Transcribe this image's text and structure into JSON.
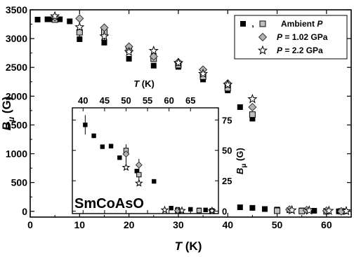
{
  "chart_data": [
    {
      "id": "main",
      "type": "scatter",
      "xlabel": "T",
      "xlabel_unit": "(K)",
      "ylabel": "B",
      "ylabel_sub": "μ",
      "ylabel_unit": "(G)",
      "xlim": [
        0,
        65
      ],
      "ylim": [
        -100,
        3500
      ],
      "xticks": [
        "0",
        "10",
        "20",
        "30",
        "40",
        "50",
        "60"
      ],
      "xtick_values": [
        0,
        10,
        20,
        30,
        40,
        50,
        60
      ],
      "yticks": [
        "0",
        "500",
        "1000",
        "1500",
        "2000",
        "2500",
        "3000",
        "3500"
      ],
      "ytick_values": [
        0,
        500,
        1000,
        1500,
        2000,
        2500,
        3000,
        3500
      ],
      "legend": {
        "placement": "top-right",
        "entries": [
          {
            "marker": "square-black+square-gray",
            "separator": ",",
            "label_var": "Ambient",
            "label_rest": "P"
          },
          {
            "marker": "diamond",
            "label_var": "P",
            "label_rest": "= 1.02 GPa"
          },
          {
            "marker": "star",
            "label_var": "P",
            "label_rest": "= 2.2 GPa"
          }
        ]
      },
      "series": [
        {
          "marker": "square-black",
          "color": "#000000",
          "points": [
            [
              1.5,
              3330
            ],
            [
              3.5,
              3335
            ],
            [
              4.5,
              3335
            ],
            [
              6,
              3335
            ],
            [
              8,
              3300
            ],
            [
              10,
              2990
            ],
            [
              15,
              2930
            ],
            [
              20,
              2650
            ],
            [
              25,
              2530
            ],
            [
              30,
              2510
            ],
            [
              35,
              2290
            ],
            [
              40,
              2100
            ],
            [
              42.5,
              1810
            ],
            [
              45,
              1610
            ],
            [
              42.5,
              70
            ],
            [
              45,
              60
            ],
            [
              47.5,
              40
            ],
            [
              50,
              30
            ],
            [
              52.5,
              20
            ],
            [
              55,
              15
            ],
            [
              57.5,
              10
            ],
            [
              60,
              5
            ],
            [
              62.5,
              0
            ],
            [
              63.5,
              0
            ]
          ]
        },
        {
          "marker": "square-gray",
          "color": "#c0c0c0",
          "points": [
            [
              5,
              3330
            ],
            [
              10,
              3110
            ],
            [
              15,
              3110
            ],
            [
              20,
              2810
            ],
            [
              25,
              2650
            ],
            [
              30,
              2540
            ],
            [
              35,
              2340
            ],
            [
              40,
              2140
            ],
            [
              45,
              1680
            ],
            [
              50,
              10
            ],
            [
              55,
              5
            ],
            [
              60,
              0
            ],
            [
              63,
              0
            ]
          ]
        },
        {
          "marker": "diamond",
          "color": "#b3b3b3",
          "points": [
            [
              5,
              3370
            ],
            [
              10,
              3350
            ],
            [
              15,
              3190
            ],
            [
              20,
              2860
            ],
            [
              25,
              2690
            ],
            [
              30,
              2590
            ],
            [
              35,
              2460
            ],
            [
              40,
              2220
            ],
            [
              45,
              1810
            ],
            [
              52.5,
              30
            ],
            [
              56,
              20
            ],
            [
              60,
              10
            ],
            [
              63,
              0
            ]
          ]
        },
        {
          "marker": "star",
          "color": "#ffffff",
          "points": [
            [
              5,
              3390
            ],
            [
              10,
              3200
            ],
            [
              15,
              3040
            ],
            [
              20,
              2770
            ],
            [
              25,
              2790
            ],
            [
              30,
              2580
            ],
            [
              35,
              2390
            ],
            [
              40,
              2200
            ],
            [
              45,
              1950
            ],
            [
              53,
              20
            ],
            [
              56.5,
              15
            ],
            [
              60.5,
              10
            ],
            [
              64,
              5
            ]
          ]
        }
      ],
      "error_bars": [
        {
          "x": 10,
          "y": 3160,
          "dy": 150
        },
        {
          "x": 15,
          "y": 3090,
          "dy": 120
        }
      ]
    },
    {
      "id": "inset",
      "type": "scatter",
      "xlabel": "T",
      "xlabel_unit": "(K)",
      "ylabel": "B",
      "ylabel_sub": "μ",
      "ylabel_unit": "(G)",
      "xlim": [
        37.5,
        71.5
      ],
      "ylim": [
        -2,
        85
      ],
      "xticks": [
        "40",
        "45",
        "50",
        "55",
        "60",
        "65"
      ],
      "xtick_values": [
        40,
        45,
        50,
        55,
        60,
        65
      ],
      "yticks": [
        "0",
        "25",
        "50",
        "75"
      ],
      "ytick_values": [
        0,
        25,
        50,
        75
      ],
      "annotation": "SmCoAsO",
      "series": [
        {
          "marker": "square-black",
          "color": "#000000",
          "points": [
            [
              40.5,
              71
            ],
            [
              42.5,
              62
            ],
            [
              44.5,
              53
            ],
            [
              46.5,
              53.5
            ],
            [
              48.5,
              44
            ],
            [
              50,
              48
            ],
            [
              52.5,
              33
            ],
            [
              56.5,
              24.5
            ],
            [
              60.5,
              2.5
            ],
            [
              62,
              1.5
            ],
            [
              65,
              1.5
            ],
            [
              67,
              1
            ],
            [
              68.5,
              1
            ]
          ]
        },
        {
          "marker": "square-gray",
          "color": "#c0c0c0",
          "points": [
            [
              50,
              50
            ],
            [
              53,
              30
            ],
            [
              62,
              0.5
            ],
            [
              67,
              0.5
            ],
            [
              70,
              0.3
            ]
          ]
        },
        {
          "marker": "diamond",
          "color": "#b3b3b3",
          "points": [
            [
              50,
              47
            ],
            [
              53,
              38
            ],
            [
              62,
              0.5
            ],
            [
              70,
              0.3
            ]
          ]
        },
        {
          "marker": "star",
          "color": "#ffffff",
          "points": [
            [
              50,
              36
            ],
            [
              53,
              23
            ],
            [
              59,
              1
            ],
            [
              63,
              0.5
            ],
            [
              70,
              0.3
            ]
          ]
        }
      ],
      "error_bars": [
        {
          "x": 40.5,
          "y": 71,
          "dy": 8
        },
        {
          "x": 42.5,
          "y": 62,
          "dy": 2
        },
        {
          "x": 50,
          "y": 47,
          "dy": 8
        },
        {
          "x": 53,
          "y": 32,
          "dy": 11
        }
      ]
    }
  ]
}
